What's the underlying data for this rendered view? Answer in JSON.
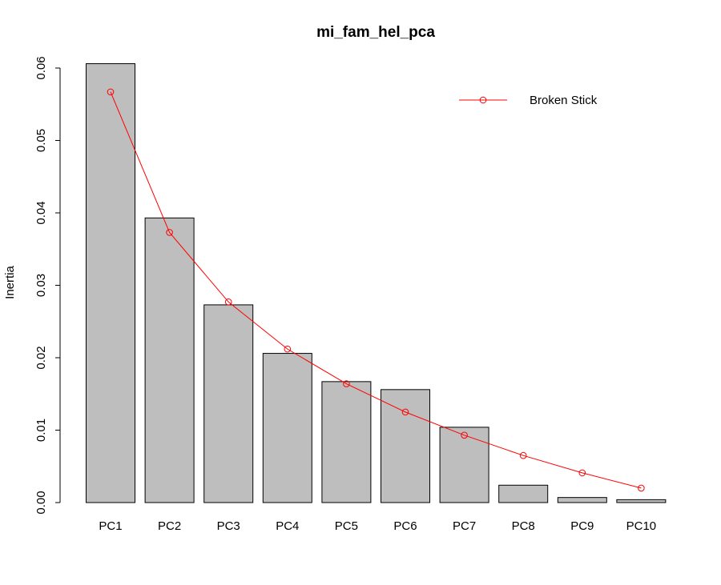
{
  "chart_data": {
    "type": "bar",
    "title": "mi_fam_hel_pca",
    "xlabel": "",
    "ylabel": "Inertia",
    "categories": [
      "PC1",
      "PC2",
      "PC3",
      "PC4",
      "PC5",
      "PC6",
      "PC7",
      "PC8",
      "PC9",
      "PC10"
    ],
    "values": [
      0.0606,
      0.0393,
      0.0273,
      0.0206,
      0.0167,
      0.0156,
      0.0104,
      0.0024,
      0.0007,
      0.0004
    ],
    "ylim": [
      0,
      0.06
    ],
    "yticks": [
      0,
      0.01,
      0.02,
      0.03,
      0.04,
      0.05,
      0.06
    ],
    "ytick_labels": [
      "0.00",
      "0.01",
      "0.02",
      "0.03",
      "0.04",
      "0.05",
      "0.06"
    ],
    "series": [
      {
        "name": "Broken Stick",
        "type": "line",
        "values": [
          0.0567,
          0.0373,
          0.0277,
          0.0212,
          0.0164,
          0.0125,
          0.0093,
          0.0065,
          0.0041,
          0.002
        ]
      }
    ],
    "legend": {
      "position": "top-right",
      "entries": [
        "Broken Stick"
      ]
    },
    "grid": false,
    "colors": {
      "bar_fill": "#bebebe",
      "bar_stroke": "#000000",
      "line": "#ff0000",
      "text": "#000000"
    }
  }
}
